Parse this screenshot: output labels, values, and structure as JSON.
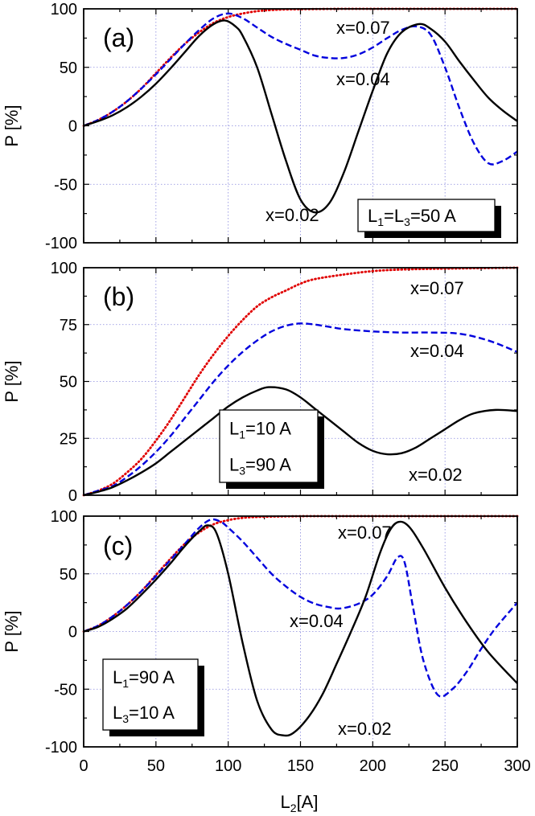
{
  "chart_data": [
    {
      "type": "line",
      "panel_label": "(a)",
      "ylabel": "P [%]",
      "xlim": [
        0,
        300
      ],
      "ylim": [
        -100,
        100
      ],
      "yticks": [
        -100,
        -50,
        0,
        50,
        100
      ],
      "grid": true,
      "legend_box": {
        "position": "bottom-right",
        "lines": [
          {
            "base": "L",
            "sub": "1",
            "mid": "=L",
            "sub2": "3",
            "tail": "=50 A"
          }
        ]
      },
      "series": [
        {
          "name": "x=0.07",
          "color": "#e00000",
          "dash": "dot",
          "x": [
            0,
            10,
            20,
            30,
            40,
            50,
            60,
            70,
            80,
            90,
            100,
            110,
            120,
            130,
            140,
            160,
            180,
            200,
            250,
            300
          ],
          "y": [
            0,
            5,
            12,
            21,
            32,
            45,
            58,
            70,
            80,
            88,
            93,
            96,
            98,
            99,
            99.5,
            99.8,
            100,
            100,
            100,
            100
          ]
        },
        {
          "name": "x=0.04",
          "color": "#0000dd",
          "dash": "dash",
          "x": [
            0,
            10,
            20,
            30,
            40,
            50,
            60,
            70,
            80,
            90,
            100,
            110,
            120,
            130,
            140,
            150,
            160,
            170,
            180,
            190,
            200,
            210,
            220,
            230,
            240,
            250,
            260,
            270,
            280,
            290,
            300
          ],
          "y": [
            0,
            5,
            12,
            21,
            32,
            44,
            57,
            70,
            82,
            92,
            96,
            92,
            84,
            76,
            70,
            65,
            60,
            58,
            58,
            61,
            67,
            75,
            82,
            85,
            78,
            50,
            15,
            -15,
            -32,
            -30,
            -22
          ]
        },
        {
          "name": "x=0.02",
          "color": "#000000",
          "dash": "solid",
          "x": [
            0,
            10,
            20,
            30,
            40,
            50,
            60,
            70,
            80,
            90,
            98,
            105,
            110,
            120,
            130,
            140,
            150,
            160,
            170,
            180,
            190,
            200,
            210,
            220,
            232,
            240,
            250,
            260,
            270,
            280,
            290,
            300
          ],
          "y": [
            0,
            4,
            9,
            16,
            25,
            36,
            49,
            63,
            77,
            87,
            90,
            85,
            77,
            50,
            10,
            -30,
            -63,
            -74,
            -66,
            -40,
            -5,
            30,
            62,
            80,
            87,
            83,
            72,
            55,
            39,
            24,
            13,
            4
          ]
        }
      ],
      "annotations": [
        "x=0.07",
        "x=0.04",
        "x=0.02"
      ]
    },
    {
      "type": "line",
      "panel_label": "(b)",
      "ylabel": "P [%]",
      "xlim": [
        0,
        300
      ],
      "ylim": [
        0,
        100
      ],
      "yticks": [
        0,
        25,
        50,
        75,
        100
      ],
      "grid": true,
      "legend_box": {
        "position": "center",
        "lines": [
          {
            "base": "L",
            "sub": "1",
            "tail": "=10 A"
          },
          {
            "base": "L",
            "sub": "3",
            "tail": "=90 A"
          }
        ]
      },
      "series": [
        {
          "name": "x=0.07",
          "color": "#e00000",
          "dash": "dot",
          "x": [
            0,
            10,
            20,
            30,
            40,
            50,
            60,
            70,
            80,
            90,
            100,
            110,
            120,
            130,
            140,
            150,
            160,
            180,
            200,
            220,
            250,
            300
          ],
          "y": [
            0,
            2,
            5,
            10,
            16,
            24,
            33,
            43,
            53,
            62,
            70,
            77,
            83,
            87,
            90,
            93,
            95,
            97,
            98.5,
            99.2,
            99.6,
            100
          ]
        },
        {
          "name": "x=0.04",
          "color": "#0000dd",
          "dash": "dash",
          "x": [
            0,
            10,
            20,
            30,
            40,
            50,
            60,
            70,
            80,
            90,
            100,
            110,
            120,
            130,
            140,
            150,
            160,
            170,
            180,
            200,
            220,
            240,
            260,
            280,
            300
          ],
          "y": [
            0,
            2,
            4,
            8,
            13,
            19,
            26,
            34,
            42,
            50,
            57,
            63,
            68,
            72,
            74.5,
            75.5,
            75,
            74,
            73,
            72,
            71.5,
            71.5,
            71,
            68,
            63
          ]
        },
        {
          "name": "x=0.02",
          "color": "#000000",
          "dash": "solid",
          "x": [
            0,
            10,
            20,
            30,
            40,
            50,
            60,
            70,
            80,
            90,
            100,
            110,
            120,
            128,
            140,
            150,
            160,
            170,
            180,
            190,
            200,
            210,
            220,
            230,
            240,
            250,
            260,
            270,
            285,
            300
          ],
          "y": [
            0,
            1.5,
            3.5,
            6.5,
            10,
            14,
            19,
            24,
            29,
            34,
            39,
            43,
            46,
            47.5,
            46.5,
            43,
            38,
            33,
            28,
            23,
            19.5,
            18,
            18.5,
            21,
            25,
            29,
            33,
            36,
            37.5,
            37
          ]
        }
      ],
      "annotations": [
        "x=0.07",
        "x=0.04",
        "x=0.02"
      ]
    },
    {
      "type": "line",
      "panel_label": "(c)",
      "ylabel": "P [%]",
      "xlabel_base": "L",
      "xlabel_sub": "2",
      "xlabel_tail": "[A]",
      "xlim": [
        0,
        300
      ],
      "ylim": [
        -100,
        100
      ],
      "xticks": [
        0,
        50,
        100,
        150,
        200,
        250,
        300
      ],
      "yticks": [
        -100,
        -50,
        0,
        50,
        100
      ],
      "grid": true,
      "legend_box": {
        "position": "bottom-left",
        "lines": [
          {
            "base": "L",
            "sub": "1",
            "tail": "=90 A"
          },
          {
            "base": "L",
            "sub": "3",
            "tail": "=10 A"
          }
        ]
      },
      "series": [
        {
          "name": "x=0.07",
          "color": "#e00000",
          "dash": "dot",
          "x": [
            0,
            10,
            20,
            30,
            40,
            50,
            60,
            70,
            80,
            90,
            100,
            110,
            120,
            140,
            160,
            200,
            250,
            300
          ],
          "y": [
            0,
            5,
            13,
            23,
            35,
            49,
            63,
            76,
            86,
            93,
            96.5,
            98.5,
            99.3,
            99.8,
            100,
            100,
            100,
            100
          ]
        },
        {
          "name": "x=0.04",
          "color": "#0000dd",
          "dash": "dash",
          "x": [
            0,
            10,
            20,
            30,
            40,
            50,
            60,
            70,
            80,
            88,
            95,
            100,
            110,
            120,
            130,
            140,
            150,
            160,
            170,
            178,
            190,
            200,
            210,
            217,
            222,
            228,
            235,
            245,
            255,
            265,
            275,
            285,
            300
          ],
          "y": [
            0,
            5,
            13,
            23,
            35,
            48,
            62,
            76,
            90,
            97,
            95,
            90,
            78,
            64,
            50,
            39,
            30,
            24,
            21,
            20,
            24,
            32,
            48,
            64,
            60,
            20,
            -25,
            -55,
            -50,
            -35,
            -15,
            3,
            25
          ]
        },
        {
          "name": "x=0.02",
          "color": "#000000",
          "dash": "solid",
          "x": [
            0,
            10,
            20,
            30,
            40,
            50,
            60,
            70,
            80,
            86,
            92,
            100,
            110,
            120,
            130,
            138,
            145,
            155,
            165,
            175,
            185,
            195,
            205,
            212,
            218,
            225,
            235,
            250,
            265,
            280,
            300
          ],
          "y": [
            0,
            4,
            11,
            20,
            32,
            45,
            59,
            74,
            87,
            92,
            85,
            50,
            -10,
            -60,
            -85,
            -90,
            -88,
            -75,
            -55,
            -28,
            0,
            30,
            68,
            88,
            95,
            91,
            72,
            38,
            8,
            -18,
            -45
          ]
        }
      ],
      "annotations": [
        "x=0.07",
        "x=0.04",
        "x=0.02"
      ]
    }
  ],
  "x_tick_labels": [
    "0",
    "50",
    "100",
    "150",
    "200",
    "250",
    "300"
  ]
}
